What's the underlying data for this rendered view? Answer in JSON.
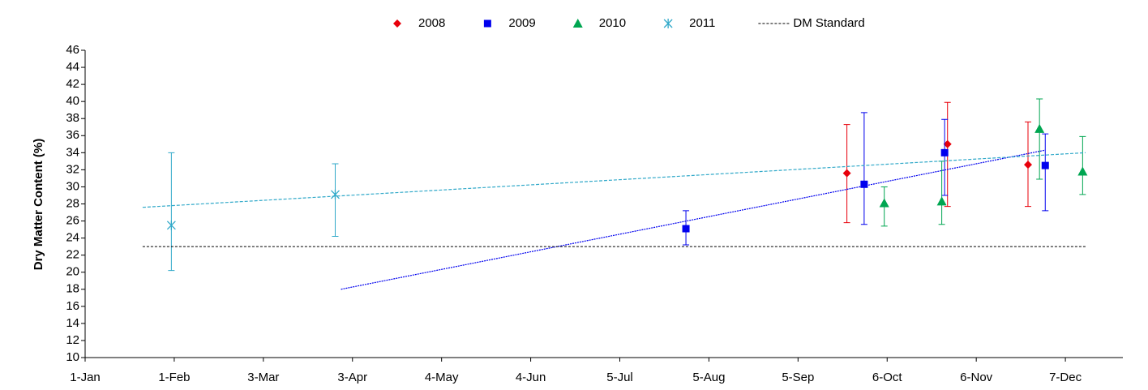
{
  "chart_data": {
    "type": "scatter",
    "y_label": "Dry Matter Content (%)",
    "xlim": [
      1,
      362
    ],
    "xticks": [
      {
        "value": 1,
        "label": "1-Jan"
      },
      {
        "value": 32,
        "label": "1-Feb"
      },
      {
        "value": 63,
        "label": "3-Mar"
      },
      {
        "value": 94,
        "label": "3-Apr"
      },
      {
        "value": 125,
        "label": "4-May"
      },
      {
        "value": 156,
        "label": "4-Jun"
      },
      {
        "value": 187,
        "label": "5-Jul"
      },
      {
        "value": 218,
        "label": "5-Aug"
      },
      {
        "value": 249,
        "label": "5-Sep"
      },
      {
        "value": 280,
        "label": "6-Oct"
      },
      {
        "value": 311,
        "label": "6-Nov"
      },
      {
        "value": 342,
        "label": "7-Dec"
      }
    ],
    "ylim": [
      10,
      46
    ],
    "yticks": [
      10,
      12,
      14,
      16,
      18,
      20,
      22,
      24,
      26,
      28,
      30,
      32,
      34,
      36,
      38,
      40,
      42,
      44,
      46
    ],
    "legend": "top",
    "series": [
      {
        "name": "2008",
        "color": "#e8000b",
        "marker": "diamond",
        "x": [
          266,
          301,
          329
        ],
        "values": [
          31.6,
          35.0,
          32.6
        ],
        "lower": [
          25.8,
          27.7,
          27.7
        ],
        "upper": [
          37.3,
          39.9,
          37.6
        ]
      },
      {
        "name": "2009",
        "color": "#0000ee",
        "marker": "square",
        "x": [
          210,
          272,
          300,
          335
        ],
        "values": [
          25.1,
          30.3,
          34.0,
          32.5
        ],
        "lower": [
          23.2,
          25.6,
          29.0,
          27.2
        ],
        "upper": [
          27.2,
          38.7,
          37.9,
          36.2
        ],
        "trend": {
          "x": [
            90,
            335
          ],
          "values": [
            18.0,
            34.3
          ]
        }
      },
      {
        "name": "2010",
        "color": "#00a651",
        "marker": "triangle",
        "x": [
          279,
          299,
          333,
          348
        ],
        "values": [
          28.1,
          28.3,
          36.8,
          31.8
        ],
        "lower": [
          25.4,
          25.6,
          30.9,
          29.1
        ],
        "upper": [
          30.0,
          33.0,
          40.3,
          35.9
        ]
      },
      {
        "name": "2011",
        "color": "#31a9c9",
        "marker": "star",
        "x": [
          31,
          88
        ],
        "values": [
          25.5,
          29.1
        ],
        "lower": [
          20.2,
          24.2
        ],
        "upper": [
          34.0,
          32.7
        ],
        "trend": {
          "x": [
            21,
            349
          ],
          "values": [
            27.6,
            34.0
          ]
        }
      },
      {
        "name": "DM Standard",
        "color": "#000000",
        "marker": "line",
        "x": [
          21,
          349
        ],
        "values": [
          23,
          23
        ]
      }
    ]
  }
}
